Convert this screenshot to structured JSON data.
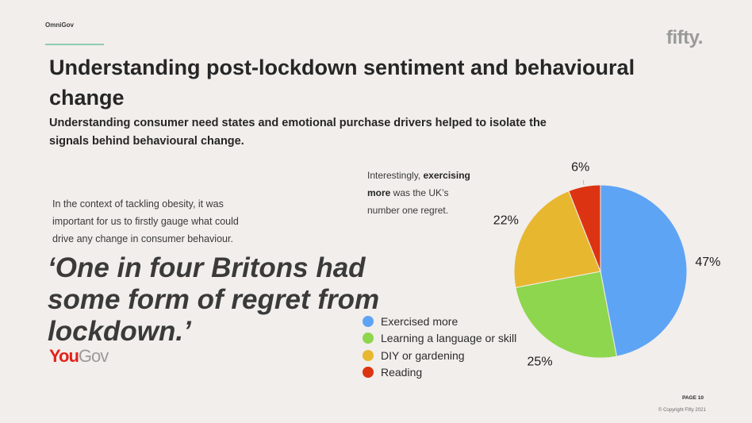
{
  "header": {
    "brand_small": "OmniGov",
    "logo": "fifty.",
    "title": "Understanding post-lockdown sentiment and behavioural change",
    "subtitle": "Understanding consumer need states and emotional purchase drivers helped to isolate the signals behind behavioural change."
  },
  "left": {
    "context": "In the context of tackling obesity, it was important for us to firstly gauge what could drive any change in consumer behaviour.",
    "quote": "‘One in four Britons had some form of regret from lockdown.’",
    "source_logo_part1": "You",
    "source_logo_part2": "Gov"
  },
  "note": {
    "prefix": "Interestingly, ",
    "bold": "exercising more",
    "suffix": " was the UK’s number one regret."
  },
  "chart_data": {
    "type": "pie",
    "title": "",
    "slices": [
      {
        "label": "Exercised more",
        "value": 47,
        "display": "47%",
        "color": "#5ea4f4"
      },
      {
        "label": "Learning a language or skill",
        "value": 25,
        "display": "25%",
        "color": "#8dd64d"
      },
      {
        "label": "DIY or gardening",
        "value": 22,
        "display": "22%",
        "color": "#e8b730"
      },
      {
        "label": "Reading",
        "value": 6,
        "display": "6%",
        "color": "#dc3412"
      }
    ],
    "legend_position": "left"
  },
  "footer": {
    "page": "PAGE 10",
    "copyright": "© Copyright Fifty 2021"
  }
}
